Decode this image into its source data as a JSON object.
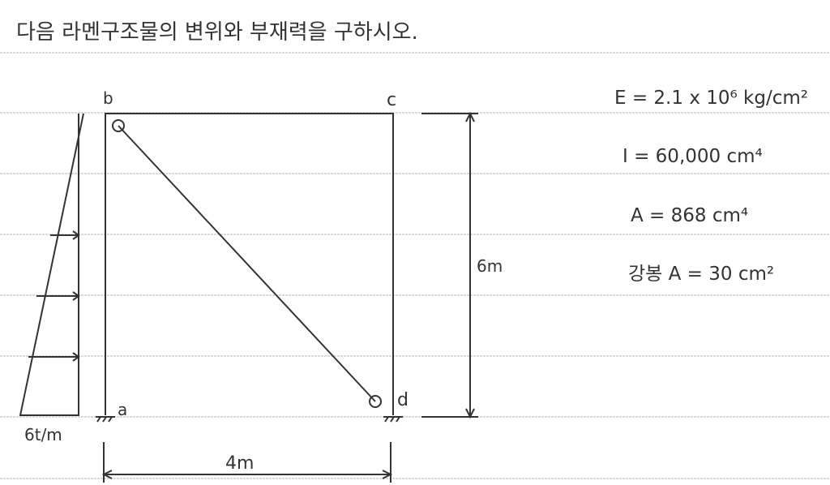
{
  "problem": "다음 라멘구조물의 변위와 부재력을 구하시오.",
  "nodes": {
    "a": "a",
    "b": "b",
    "c": "c",
    "d": "d"
  },
  "dimensions": {
    "height": "6m",
    "width": "4m"
  },
  "load": "6t/m",
  "properties": {
    "E": "E = 2.1 x 10⁶ kg/cm²",
    "I": "I = 60,000 cm⁴",
    "A": "A = 868 cm⁴",
    "rod_A": "강봉 A = 30 cm²"
  },
  "colors": {
    "ink": "#333333",
    "rule": "#bbbbbb"
  }
}
